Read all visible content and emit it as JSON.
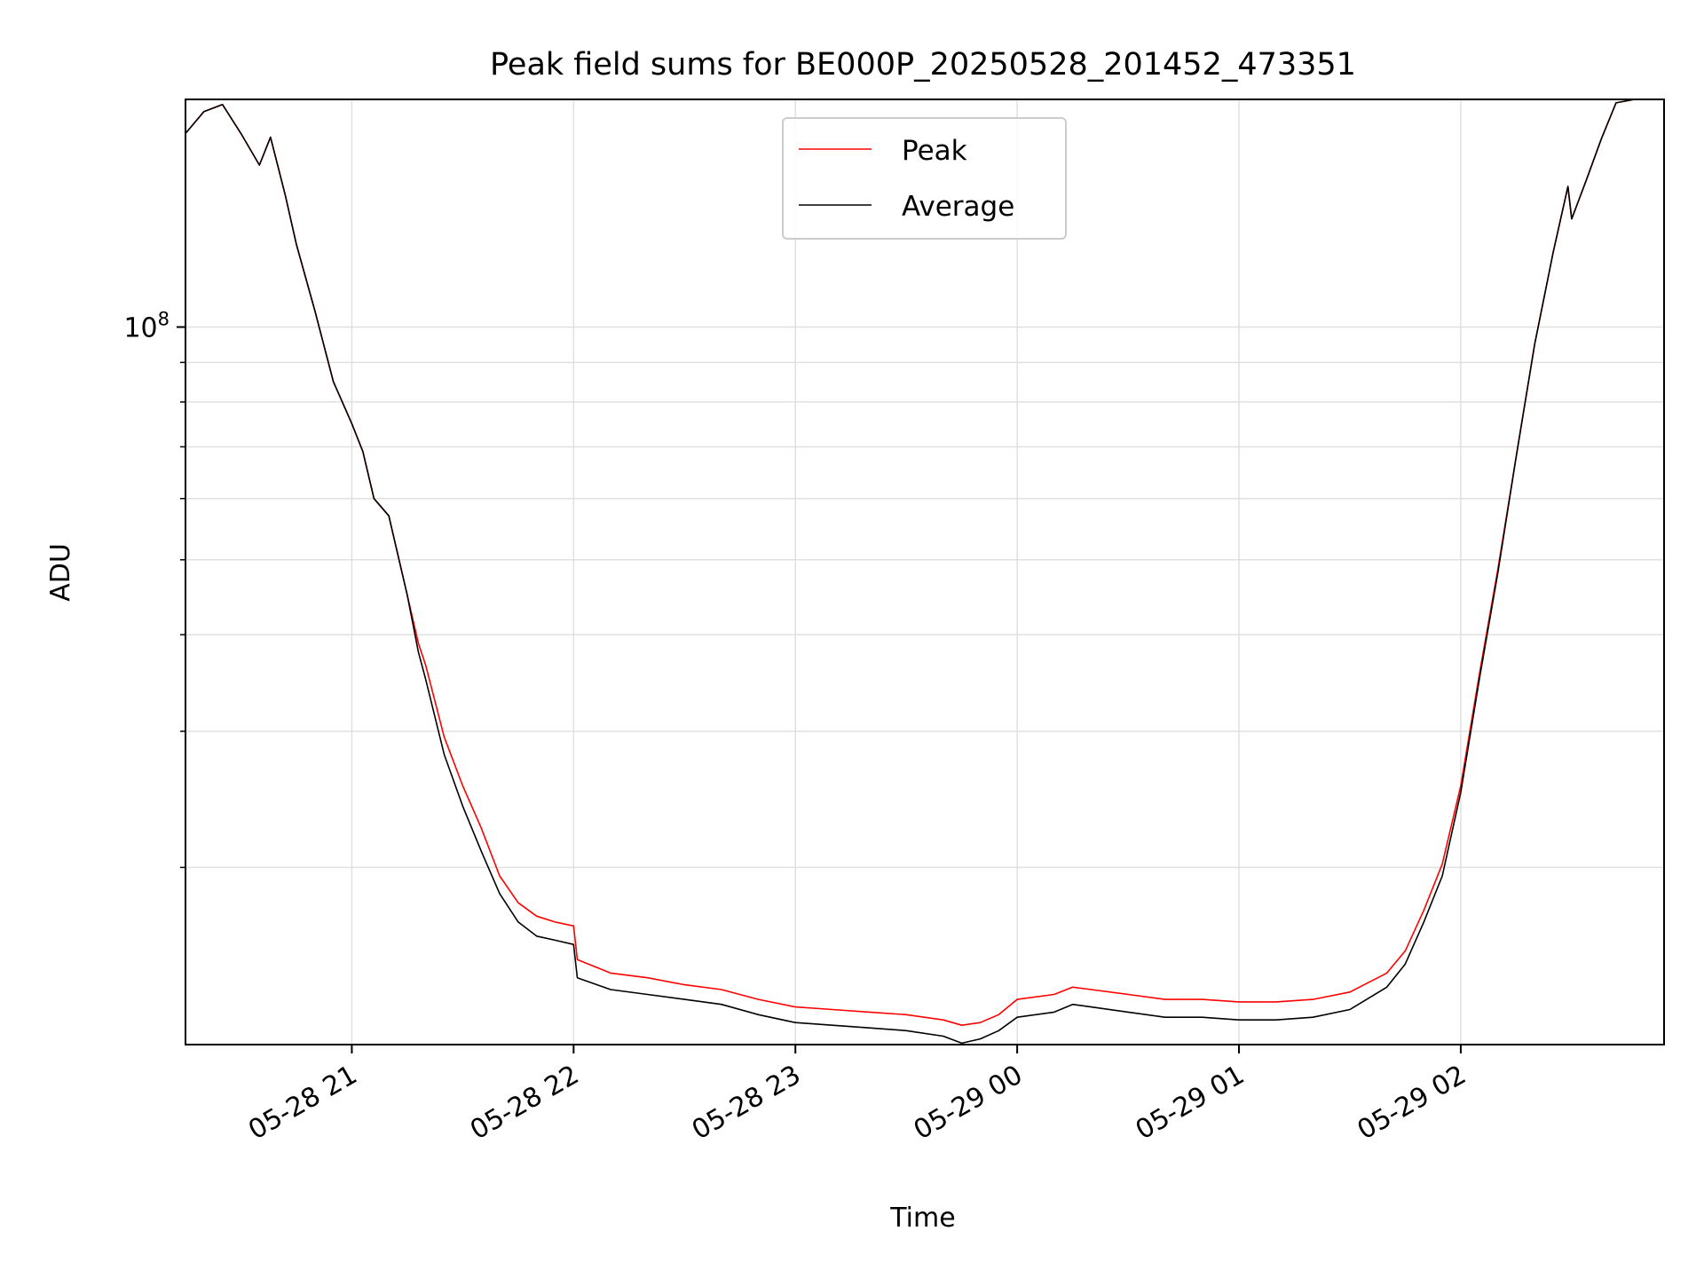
{
  "chart_data": {
    "type": "line",
    "title": "Peak field sums for BE000P_20250528_201452_473351",
    "xlabel": "Time",
    "ylabel": "ADU",
    "yscale": "log",
    "grid": true,
    "legend_placement": "top-center",
    "colors": {
      "Peak": "#ff0000",
      "Average": "#000000",
      "grid": "#e0e0e0"
    },
    "xlim": [
      "2025-05-28 20:15",
      "2025-05-29 02:55"
    ],
    "ylim": [
      11800000,
      197000000
    ],
    "x_ticks": [
      "2025-05-28 21:00",
      "2025-05-28 22:00",
      "2025-05-28 23:00",
      "2025-05-29 00:00",
      "2025-05-29 01:00",
      "2025-05-29 02:00"
    ],
    "x_tick_labels": [
      "05-28 21",
      "05-28 22",
      "05-28 23",
      "05-29 00",
      "05-29 01",
      "05-29 02"
    ],
    "y_major_ticks": [
      100000000
    ],
    "y_tick_labels": [
      "10^8"
    ],
    "y_minor_ticks": [
      20000000,
      30000000,
      40000000,
      50000000,
      60000000,
      70000000,
      80000000,
      90000000,
      200000000
    ],
    "series": [
      {
        "name": "Average",
        "x": [
          "2025-05-28 20:15",
          "2025-05-28 20:20",
          "2025-05-28 20:25",
          "2025-05-28 20:30",
          "2025-05-28 20:35",
          "2025-05-28 20:38",
          "2025-05-28 20:42",
          "2025-05-28 20:45",
          "2025-05-28 20:50",
          "2025-05-28 20:55",
          "2025-05-28 21:00",
          "2025-05-28 21:03",
          "2025-05-28 21:06",
          "2025-05-28 21:10",
          "2025-05-28 21:15",
          "2025-05-28 21:18",
          "2025-05-28 21:20",
          "2025-05-28 21:25",
          "2025-05-28 21:30",
          "2025-05-28 21:35",
          "2025-05-28 21:40",
          "2025-05-28 21:45",
          "2025-05-28 21:50",
          "2025-05-28 21:55",
          "2025-05-28 22:00",
          "2025-05-28 22:01",
          "2025-05-28 22:10",
          "2025-05-28 22:20",
          "2025-05-28 22:30",
          "2025-05-28 22:40",
          "2025-05-28 22:50",
          "2025-05-28 23:00",
          "2025-05-28 23:10",
          "2025-05-28 23:20",
          "2025-05-28 23:30",
          "2025-05-28 23:40",
          "2025-05-28 23:45",
          "2025-05-28 23:50",
          "2025-05-28 23:55",
          "2025-05-29 00:00",
          "2025-05-29 00:10",
          "2025-05-29 00:15",
          "2025-05-29 00:20",
          "2025-05-29 00:30",
          "2025-05-29 00:40",
          "2025-05-29 00:50",
          "2025-05-29 01:00",
          "2025-05-29 01:10",
          "2025-05-29 01:20",
          "2025-05-29 01:30",
          "2025-05-29 01:40",
          "2025-05-29 01:45",
          "2025-05-29 01:50",
          "2025-05-29 01:55",
          "2025-05-29 02:00",
          "2025-05-29 02:05",
          "2025-05-29 02:10",
          "2025-05-29 02:15",
          "2025-05-29 02:20",
          "2025-05-29 02:25",
          "2025-05-29 02:29",
          "2025-05-29 02:30",
          "2025-05-29 02:34",
          "2025-05-29 02:38",
          "2025-05-29 02:42",
          "2025-05-29 02:47",
          "2025-05-29 02:55"
        ],
        "y": [
          178000000,
          190000000,
          194000000,
          178000000,
          162000000,
          176000000,
          148000000,
          128000000,
          105000000,
          85000000,
          75000000,
          69000000,
          60000000,
          57000000,
          45000000,
          38000000,
          35000000,
          28000000,
          24000000,
          21000000,
          18500000,
          17000000,
          16300000,
          16100000,
          15900000,
          14400000,
          13900000,
          13700000,
          13500000,
          13300000,
          12900000,
          12600000,
          12500000,
          12400000,
          12300000,
          12100000,
          11850000,
          12000000,
          12300000,
          12800000,
          13000000,
          13300000,
          13200000,
          13000000,
          12800000,
          12800000,
          12700000,
          12700000,
          12800000,
          13100000,
          14000000,
          15000000,
          17000000,
          19500000,
          25000000,
          35000000,
          48000000,
          68000000,
          95000000,
          125000000,
          152000000,
          138000000,
          155000000,
          175000000,
          195000000,
          197000000,
          197000000
        ]
      },
      {
        "name": "Peak",
        "x": [
          "2025-05-28 20:15",
          "2025-05-28 20:20",
          "2025-05-28 20:25",
          "2025-05-28 20:30",
          "2025-05-28 20:35",
          "2025-05-28 20:38",
          "2025-05-28 20:42",
          "2025-05-28 20:45",
          "2025-05-28 20:50",
          "2025-05-28 20:55",
          "2025-05-28 21:00",
          "2025-05-28 21:03",
          "2025-05-28 21:06",
          "2025-05-28 21:10",
          "2025-05-28 21:15",
          "2025-05-28 21:18",
          "2025-05-28 21:20",
          "2025-05-28 21:25",
          "2025-05-28 21:30",
          "2025-05-28 21:35",
          "2025-05-28 21:40",
          "2025-05-28 21:45",
          "2025-05-28 21:50",
          "2025-05-28 21:55",
          "2025-05-28 22:00",
          "2025-05-28 22:01",
          "2025-05-28 22:10",
          "2025-05-28 22:20",
          "2025-05-28 22:30",
          "2025-05-28 22:40",
          "2025-05-28 22:50",
          "2025-05-28 23:00",
          "2025-05-28 23:10",
          "2025-05-28 23:20",
          "2025-05-28 23:30",
          "2025-05-28 23:40",
          "2025-05-28 23:45",
          "2025-05-28 23:50",
          "2025-05-28 23:55",
          "2025-05-29 00:00",
          "2025-05-29 00:10",
          "2025-05-29 00:15",
          "2025-05-29 00:20",
          "2025-05-29 00:30",
          "2025-05-29 00:40",
          "2025-05-29 00:50",
          "2025-05-29 01:00",
          "2025-05-29 01:10",
          "2025-05-29 01:20",
          "2025-05-29 01:30",
          "2025-05-29 01:40",
          "2025-05-29 01:45",
          "2025-05-29 01:50",
          "2025-05-29 01:55",
          "2025-05-29 02:00",
          "2025-05-29 02:05",
          "2025-05-29 02:10",
          "2025-05-29 02:15",
          "2025-05-29 02:20",
          "2025-05-29 02:25",
          "2025-05-29 02:29",
          "2025-05-29 02:30",
          "2025-05-29 02:34",
          "2025-05-29 02:38",
          "2025-05-29 02:42",
          "2025-05-29 02:47",
          "2025-05-29 02:55"
        ],
        "y": [
          178000000,
          190000000,
          194000000,
          178000000,
          162000000,
          176000000,
          148000000,
          128000000,
          105000000,
          85000000,
          75000000,
          69000000,
          60000000,
          57000000,
          45000000,
          39000000,
          36500000,
          29500000,
          25500000,
          22500000,
          19500000,
          18000000,
          17300000,
          17000000,
          16800000,
          15200000,
          14600000,
          14400000,
          14100000,
          13900000,
          13500000,
          13200000,
          13100000,
          13000000,
          12900000,
          12700000,
          12500000,
          12600000,
          12900000,
          13500000,
          13700000,
          14000000,
          13900000,
          13700000,
          13500000,
          13500000,
          13400000,
          13400000,
          13500000,
          13800000,
          14600000,
          15600000,
          17600000,
          20200000,
          25500000,
          35500000,
          48500000,
          68000000,
          95000000,
          125000000,
          152000000,
          138000000,
          155000000,
          175000000,
          195000000,
          197000000,
          197000000
        ]
      }
    ]
  }
}
